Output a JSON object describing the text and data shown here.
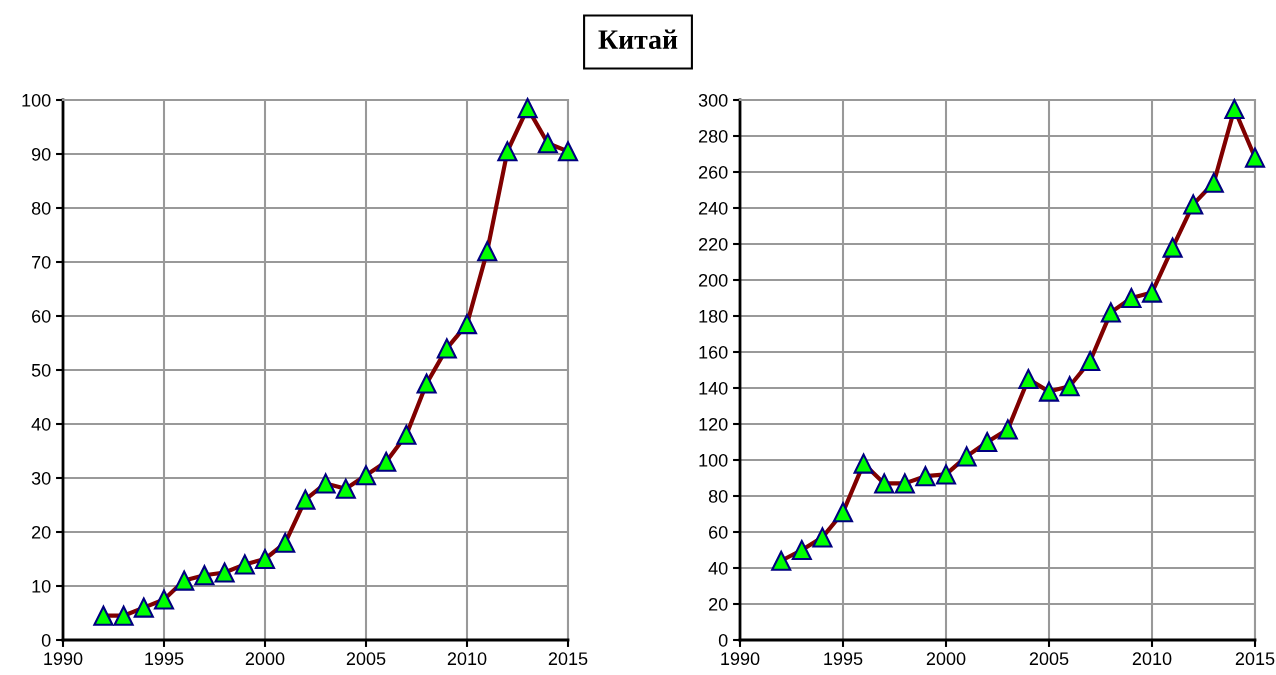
{
  "chart_data": [
    {
      "type": "line",
      "title": "Китай",
      "x": [
        1992,
        1993,
        1994,
        1995,
        1996,
        1997,
        1998,
        1999,
        2000,
        2001,
        2002,
        2003,
        2004,
        2005,
        2006,
        2007,
        2008,
        2009,
        2010,
        2011,
        2012,
        2013,
        2014,
        2015
      ],
      "series": [
        {
          "color": "#800000",
          "values": [
            4.5,
            4.5,
            6,
            7.5,
            11,
            12,
            12.5,
            14,
            15,
            18,
            26,
            29,
            28,
            30.5,
            33,
            38,
            47.5,
            54,
            58.5,
            72,
            90.5,
            98.5,
            92,
            90.5
          ]
        }
      ],
      "xlim": [
        1990,
        2015
      ],
      "xticks": [
        1990,
        1995,
        2000,
        2005,
        2010,
        2015
      ],
      "ylim": [
        0,
        100
      ],
      "yticks": [
        0,
        10,
        20,
        30,
        40,
        50,
        60,
        70,
        80,
        90,
        100
      ],
      "grid": true,
      "marker": "triangle",
      "line_style": "solid"
    },
    {
      "type": "line",
      "x": [
        1992,
        1993,
        1994,
        1995,
        1996,
        1997,
        1998,
        1999,
        2000,
        2001,
        2002,
        2003,
        2004,
        2005,
        2006,
        2007,
        2008,
        2009,
        2010,
        2011,
        2012,
        2013,
        2014,
        2015
      ],
      "series": [
        {
          "color": "#800000",
          "values": [
            44,
            50,
            57,
            71,
            98,
            87,
            87,
            91,
            92,
            102,
            110,
            117,
            145,
            138,
            141,
            155,
            182,
            190,
            193,
            218,
            242,
            254,
            295,
            268
          ]
        }
      ],
      "xlim": [
        1990,
        2015
      ],
      "xticks": [
        1990,
        1995,
        2000,
        2005,
        2010,
        2015
      ],
      "ylim": [
        0,
        300
      ],
      "yticks": [
        0,
        20,
        40,
        60,
        80,
        100,
        120,
        140,
        160,
        180,
        200,
        220,
        240,
        260,
        280,
        300
      ],
      "grid": true,
      "marker": "triangle",
      "line_style": "solid"
    }
  ]
}
